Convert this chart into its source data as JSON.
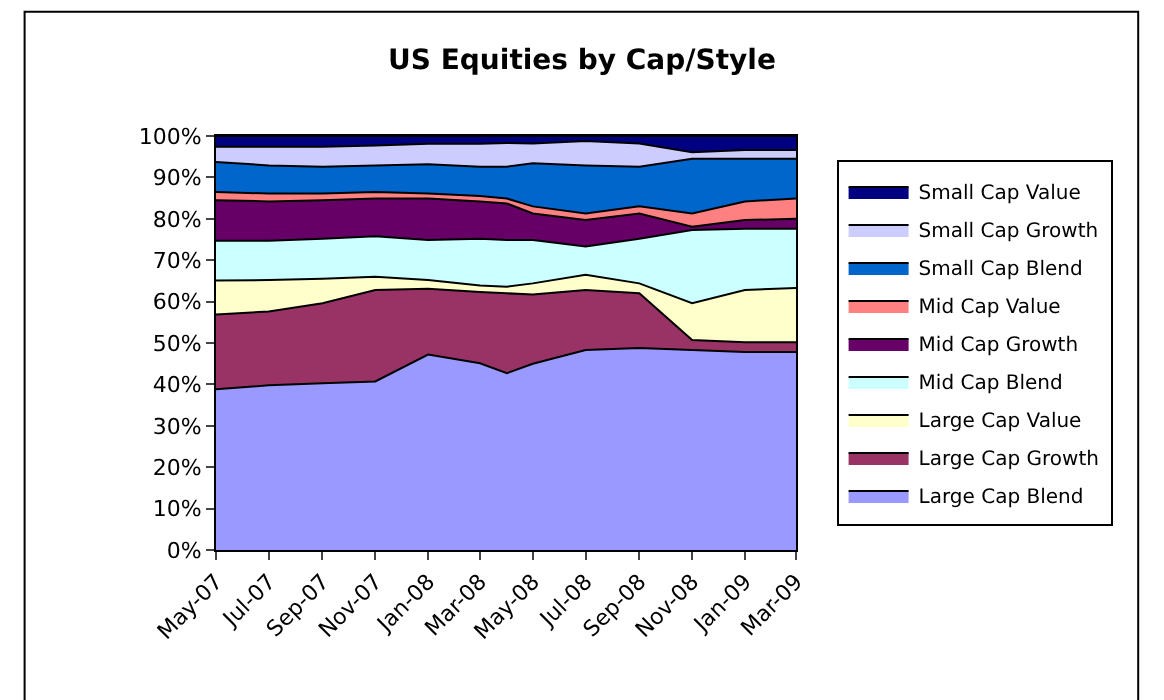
{
  "chart_data": {
    "type": "area",
    "stacked": true,
    "title": "US Equities by Cap/Style",
    "x": [
      "2007-05",
      "2007-07",
      "2007-09",
      "2007-11",
      "2008-01",
      "2008-03",
      "2008-04",
      "2008-05",
      "2008-07",
      "2008-09",
      "2008-11",
      "2009-01",
      "2009-03"
    ],
    "series": [
      {
        "name": "Large Cap Blend",
        "color": "#9999ff",
        "values": [
          38.8,
          39.8,
          40.3,
          40.7,
          47.2,
          45.1,
          42.7,
          45.0,
          48.3,
          48.8,
          48.3,
          47.8,
          47.8
        ]
      },
      {
        "name": "Large Cap Growth",
        "color": "#993366",
        "values": [
          18.1,
          17.8,
          19.3,
          22.1,
          15.9,
          17.2,
          19.3,
          16.7,
          14.5,
          13.2,
          2.4,
          2.4,
          2.4
        ]
      },
      {
        "name": "Large Cap Value",
        "color": "#ffffcc",
        "values": [
          8.2,
          7.6,
          5.9,
          3.2,
          2.1,
          1.6,
          1.6,
          2.7,
          3.7,
          2.4,
          8.9,
          12.6,
          13.1
        ]
      },
      {
        "name": "Mid Cap Blend",
        "color": "#ccffff",
        "values": [
          9.6,
          9.5,
          9.7,
          9.8,
          9.7,
          11.3,
          11.3,
          10.5,
          6.8,
          10.8,
          17.7,
          14.8,
          14.3
        ]
      },
      {
        "name": "Mid Cap Growth",
        "color": "#660066",
        "values": [
          9.8,
          9.5,
          9.3,
          9.1,
          10.0,
          9.0,
          8.8,
          6.4,
          6.4,
          6.1,
          0.8,
          2.1,
          2.4
        ]
      },
      {
        "name": "Mid Cap Value",
        "color": "#ff8080",
        "values": [
          2.0,
          1.9,
          1.6,
          1.6,
          1.2,
          1.3,
          1.2,
          1.7,
          1.6,
          1.7,
          3.2,
          4.5,
          4.9
        ]
      },
      {
        "name": "Small Cap Blend",
        "color": "#0066cc",
        "values": [
          7.2,
          6.8,
          6.5,
          6.4,
          7.1,
          7.1,
          7.7,
          10.4,
          11.6,
          9.6,
          13.2,
          10.3,
          9.6
        ]
      },
      {
        "name": "Small Cap Growth",
        "color": "#ccccff",
        "values": [
          3.7,
          4.5,
          4.8,
          4.8,
          4.9,
          5.5,
          5.7,
          4.8,
          5.9,
          5.6,
          1.6,
          2.1,
          2.1
        ]
      },
      {
        "name": "Small Cap Value",
        "color": "#000080",
        "values": [
          2.6,
          2.6,
          2.6,
          2.3,
          1.9,
          1.9,
          1.7,
          1.8,
          1.2,
          1.8,
          3.9,
          3.4,
          3.4
        ]
      }
    ],
    "xlim": [
      "2007-05",
      "2009-03"
    ],
    "xticks": [
      {
        "value": "2007-05",
        "label": "May-07"
      },
      {
        "value": "2007-07",
        "label": "Jul-07"
      },
      {
        "value": "2007-09",
        "label": "Sep-07"
      },
      {
        "value": "2007-11",
        "label": "Nov-07"
      },
      {
        "value": "2008-01",
        "label": "Jan-08"
      },
      {
        "value": "2008-03",
        "label": "Mar-08"
      },
      {
        "value": "2008-05",
        "label": "May-08"
      },
      {
        "value": "2008-07",
        "label": "Jul-08"
      },
      {
        "value": "2008-09",
        "label": "Sep-08"
      },
      {
        "value": "2008-11",
        "label": "Nov-08"
      },
      {
        "value": "2009-01",
        "label": "Jan-09"
      },
      {
        "value": "2009-03",
        "label": "Mar-09"
      }
    ],
    "ylim": [
      0,
      100
    ],
    "yticks": [
      {
        "value": 0,
        "label": "0%"
      },
      {
        "value": 10,
        "label": "10%"
      },
      {
        "value": 20,
        "label": "20%"
      },
      {
        "value": 30,
        "label": "30%"
      },
      {
        "value": 40,
        "label": "40%"
      },
      {
        "value": 50,
        "label": "50%"
      },
      {
        "value": 60,
        "label": "60%"
      },
      {
        "value": 70,
        "label": "70%"
      },
      {
        "value": 80,
        "label": "80%"
      },
      {
        "value": 90,
        "label": "90%"
      },
      {
        "value": 100,
        "label": "100%"
      }
    ],
    "legend": "right"
  }
}
